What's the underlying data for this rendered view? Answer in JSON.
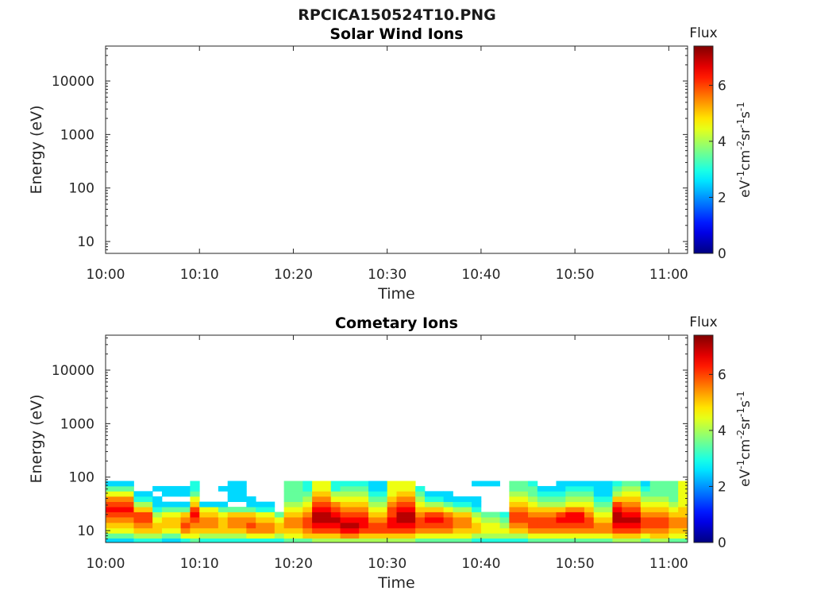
{
  "figure": {
    "title": "RPCICA150524T10.PNG"
  },
  "chart_data": [
    {
      "type": "heatmap",
      "title": "Solar Wind Ions",
      "xlabel": "Time",
      "ylabel": "Energy (eV)",
      "x_ticks": [
        "10:00",
        "10:10",
        "10:20",
        "10:30",
        "10:40",
        "10:50",
        "11:00"
      ],
      "y_ticks": [
        "10",
        "100",
        "1000",
        "10000"
      ],
      "y_scale": "log",
      "ylim": [
        6,
        45000
      ],
      "xlim": [
        "10:00",
        "11:02"
      ],
      "colorbar": {
        "label": "Flux",
        "unit_label": "eV-1cm-2sr-1s-1",
        "ticks": [
          "0",
          "2",
          "4",
          "6"
        ],
        "range": [
          0,
          7.4
        ]
      },
      "values": []
    },
    {
      "type": "heatmap",
      "title": "Cometary Ions",
      "xlabel": "Time",
      "ylabel": "Energy (eV)",
      "x_ticks": [
        "10:00",
        "10:10",
        "10:20",
        "10:30",
        "10:40",
        "10:50",
        "11:00"
      ],
      "y_ticks": [
        "10",
        "100",
        "1000",
        "10000"
      ],
      "y_scale": "log",
      "ylim": [
        6,
        45000
      ],
      "xlim": [
        "10:00",
        "11:02"
      ],
      "colorbar": {
        "label": "Flux",
        "unit_label": "eV-1cm-2sr-1s-1",
        "ticks": [
          "0",
          "2",
          "4",
          "6"
        ],
        "range": [
          0,
          7.4
        ]
      },
      "energy_bins_eV": [
        6.5,
        8,
        10,
        12.5,
        16,
        20,
        25,
        31,
        39,
        49,
        61,
        76
      ],
      "columns": [
        {
          "t": "10:00",
          "flux": [
            2.5,
            3.5,
            4.5,
            5.0,
            5.5,
            6.0,
            6.5,
            6.0,
            5.5,
            4.5,
            3.5,
            2.5
          ]
        },
        {
          "t": "10:02",
          "flux": [
            2.5,
            3.5,
            4.5,
            5.0,
            5.5,
            6.0,
            6.5,
            6.0,
            5.5,
            4.5,
            3.5,
            2.5
          ]
        },
        {
          "t": "10:03",
          "flux": [
            3.0,
            4.0,
            5.0,
            5.5,
            6.0,
            6.0,
            5.0,
            4.0,
            3.0,
            2.5,
            null,
            null
          ]
        },
        {
          "t": "10:05",
          "flux": [
            3.0,
            4.0,
            5.0,
            5.0,
            4.5,
            4.0,
            3.0,
            2.5,
            2.5,
            null,
            2.5,
            null
          ]
        },
        {
          "t": "10:06",
          "flux": [
            2.5,
            3.5,
            4.5,
            5.0,
            5.0,
            4.5,
            3.5,
            2.5,
            null,
            2.5,
            2.5,
            null
          ]
        },
        {
          "t": "10:08",
          "flux": [
            3.0,
            4.5,
            5.5,
            6.0,
            5.5,
            5.0,
            3.5,
            2.5,
            null,
            2.5,
            2.5,
            null
          ]
        },
        {
          "t": "10:09",
          "flux": [
            3.5,
            4.5,
            5.0,
            5.5,
            6.0,
            6.5,
            6.0,
            5.0,
            4.5,
            3.5,
            3.0,
            3.0
          ]
        },
        {
          "t": "10:10",
          "flux": [
            3.0,
            4.0,
            5.0,
            5.5,
            5.5,
            5.0,
            4.5,
            2.5,
            null,
            null,
            null,
            null
          ]
        },
        {
          "t": "10:12",
          "flux": [
            3.0,
            4.0,
            5.0,
            5.0,
            5.0,
            4.5,
            3.5,
            2.5,
            null,
            null,
            2.5,
            null
          ]
        },
        {
          "t": "10:13",
          "flux": [
            3.0,
            4.0,
            5.0,
            5.5,
            5.5,
            5.0,
            3.5,
            null,
            2.5,
            2.5,
            2.5,
            2.5
          ]
        },
        {
          "t": "10:15",
          "flux": [
            3.0,
            4.5,
            5.5,
            6.0,
            5.5,
            5.0,
            3.5,
            2.5,
            2.5,
            null,
            null,
            null
          ]
        },
        {
          "t": "10:16",
          "flux": [
            3.0,
            4.5,
            5.5,
            5.5,
            5.0,
            4.5,
            3.0,
            2.5,
            null,
            null,
            null,
            null
          ]
        },
        {
          "t": "10:18",
          "flux": [
            3.0,
            4.0,
            5.0,
            5.0,
            4.5,
            3.5,
            null,
            null,
            null,
            null,
            null,
            null
          ]
        },
        {
          "t": "10:19",
          "flux": [
            3.5,
            4.5,
            5.0,
            5.5,
            5.5,
            5.0,
            4.5,
            4.0,
            3.5,
            3.5,
            3.5,
            3.5
          ]
        },
        {
          "t": "10:21",
          "flux": [
            3.5,
            5.0,
            5.5,
            6.0,
            6.0,
            5.5,
            5.0,
            4.5,
            4.0,
            3.5,
            3.0,
            3.0
          ]
        },
        {
          "t": "10:22",
          "flux": [
            4.0,
            5.0,
            6.0,
            6.5,
            7.0,
            7.0,
            6.5,
            6.0,
            5.5,
            5.0,
            4.5,
            4.5
          ]
        },
        {
          "t": "10:24",
          "flux": [
            4.0,
            5.0,
            6.0,
            6.5,
            7.0,
            6.5,
            6.0,
            5.5,
            4.5,
            4.0,
            3.0,
            3.0
          ]
        },
        {
          "t": "10:25",
          "flux": [
            4.0,
            5.5,
            6.5,
            7.0,
            6.5,
            6.0,
            5.5,
            5.0,
            4.5,
            4.0,
            3.5,
            3.0
          ]
        },
        {
          "t": "10:27",
          "flux": [
            4.0,
            5.0,
            6.0,
            6.5,
            6.5,
            6.0,
            5.5,
            5.0,
            4.5,
            4.0,
            3.5,
            3.0
          ]
        },
        {
          "t": "10:28",
          "flux": [
            4.0,
            5.0,
            6.0,
            6.0,
            5.5,
            5.0,
            4.5,
            4.0,
            3.5,
            3.0,
            2.5,
            2.5
          ]
        },
        {
          "t": "10:30",
          "flux": [
            4.0,
            5.0,
            6.0,
            6.5,
            6.5,
            6.0,
            6.0,
            5.5,
            5.0,
            4.5,
            4.5,
            4.5
          ]
        },
        {
          "t": "10:31",
          "flux": [
            4.0,
            5.0,
            6.0,
            6.5,
            7.0,
            7.0,
            6.5,
            6.0,
            5.5,
            5.0,
            4.5,
            4.5
          ]
        },
        {
          "t": "10:33",
          "flux": [
            3.5,
            4.5,
            5.5,
            6.0,
            6.0,
            5.5,
            5.0,
            4.5,
            4.0,
            3.5,
            3.0,
            null
          ]
        },
        {
          "t": "10:34",
          "flux": [
            3.5,
            4.5,
            5.5,
            6.0,
            6.5,
            6.0,
            5.0,
            4.0,
            3.0,
            2.5,
            null,
            null
          ]
        },
        {
          "t": "10:36",
          "flux": [
            3.5,
            4.5,
            5.5,
            6.0,
            6.0,
            5.5,
            4.5,
            3.5,
            2.5,
            2.5,
            null,
            null
          ]
        },
        {
          "t": "10:37",
          "flux": [
            3.5,
            4.5,
            5.0,
            5.5,
            5.5,
            5.0,
            4.0,
            3.0,
            2.5,
            null,
            null,
            null
          ]
        },
        {
          "t": "10:39",
          "flux": [
            3.0,
            4.0,
            5.0,
            5.0,
            4.5,
            4.0,
            3.0,
            2.5,
            2.5,
            null,
            null,
            2.5
          ]
        },
        {
          "t": "10:40",
          "flux": [
            3.0,
            4.0,
            4.5,
            4.5,
            4.0,
            3.5,
            null,
            null,
            null,
            null,
            null,
            2.5
          ]
        },
        {
          "t": "10:42",
          "flux": [
            3.0,
            4.0,
            4.5,
            4.0,
            3.5,
            3.0,
            null,
            null,
            null,
            null,
            null,
            null
          ]
        },
        {
          "t": "10:43",
          "flux": [
            3.0,
            4.0,
            5.0,
            5.5,
            6.0,
            6.0,
            5.5,
            5.0,
            4.5,
            4.0,
            3.5,
            3.5
          ]
        },
        {
          "t": "10:45",
          "flux": [
            3.5,
            4.5,
            5.5,
            6.0,
            6.0,
            5.5,
            5.0,
            4.5,
            4.0,
            3.5,
            3.5,
            3.0
          ]
        },
        {
          "t": "10:46",
          "flux": [
            3.5,
            4.5,
            5.5,
            6.0,
            6.0,
            5.5,
            5.0,
            4.0,
            3.5,
            3.0,
            2.5,
            null
          ]
        },
        {
          "t": "10:48",
          "flux": [
            3.5,
            4.5,
            5.5,
            6.0,
            6.5,
            6.0,
            5.0,
            4.0,
            3.5,
            3.0,
            2.5,
            2.5
          ]
        },
        {
          "t": "10:49",
          "flux": [
            3.5,
            4.5,
            5.5,
            6.0,
            6.5,
            6.5,
            5.5,
            4.5,
            4.0,
            3.5,
            3.0,
            2.5
          ]
        },
        {
          "t": "10:51",
          "flux": [
            3.5,
            4.5,
            5.5,
            6.0,
            6.0,
            5.5,
            5.0,
            4.5,
            4.0,
            3.5,
            3.0,
            2.5
          ]
        },
        {
          "t": "10:52",
          "flux": [
            3.5,
            4.5,
            5.5,
            5.5,
            5.0,
            4.5,
            4.0,
            3.5,
            3.0,
            2.5,
            2.5,
            2.5
          ]
        },
        {
          "t": "10:54",
          "flux": [
            4.0,
            5.0,
            6.0,
            6.5,
            7.0,
            7.0,
            6.5,
            6.0,
            5.0,
            4.0,
            3.5,
            3.0
          ]
        },
        {
          "t": "10:55",
          "flux": [
            4.0,
            5.0,
            6.0,
            6.5,
            7.0,
            6.5,
            6.0,
            5.5,
            5.0,
            4.5,
            4.0,
            3.5
          ]
        },
        {
          "t": "10:57",
          "flux": [
            3.5,
            4.5,
            5.5,
            6.0,
            6.0,
            5.5,
            5.0,
            4.5,
            4.0,
            3.5,
            3.0,
            2.5
          ]
        },
        {
          "t": "10:58",
          "flux": [
            4.0,
            5.0,
            5.5,
            6.0,
            6.0,
            5.5,
            5.0,
            4.5,
            4.0,
            3.5,
            3.5,
            3.5
          ]
        },
        {
          "t": "11:00",
          "flux": [
            3.5,
            4.5,
            5.0,
            5.5,
            5.5,
            5.0,
            4.5,
            4.0,
            3.5,
            3.5,
            3.5,
            3.5
          ]
        },
        {
          "t": "11:01",
          "flux": [
            3.5,
            4.5,
            5.0,
            5.5,
            5.5,
            5.0,
            5.0,
            4.5,
            4.5,
            4.5,
            4.5,
            4.5
          ]
        }
      ]
    }
  ]
}
